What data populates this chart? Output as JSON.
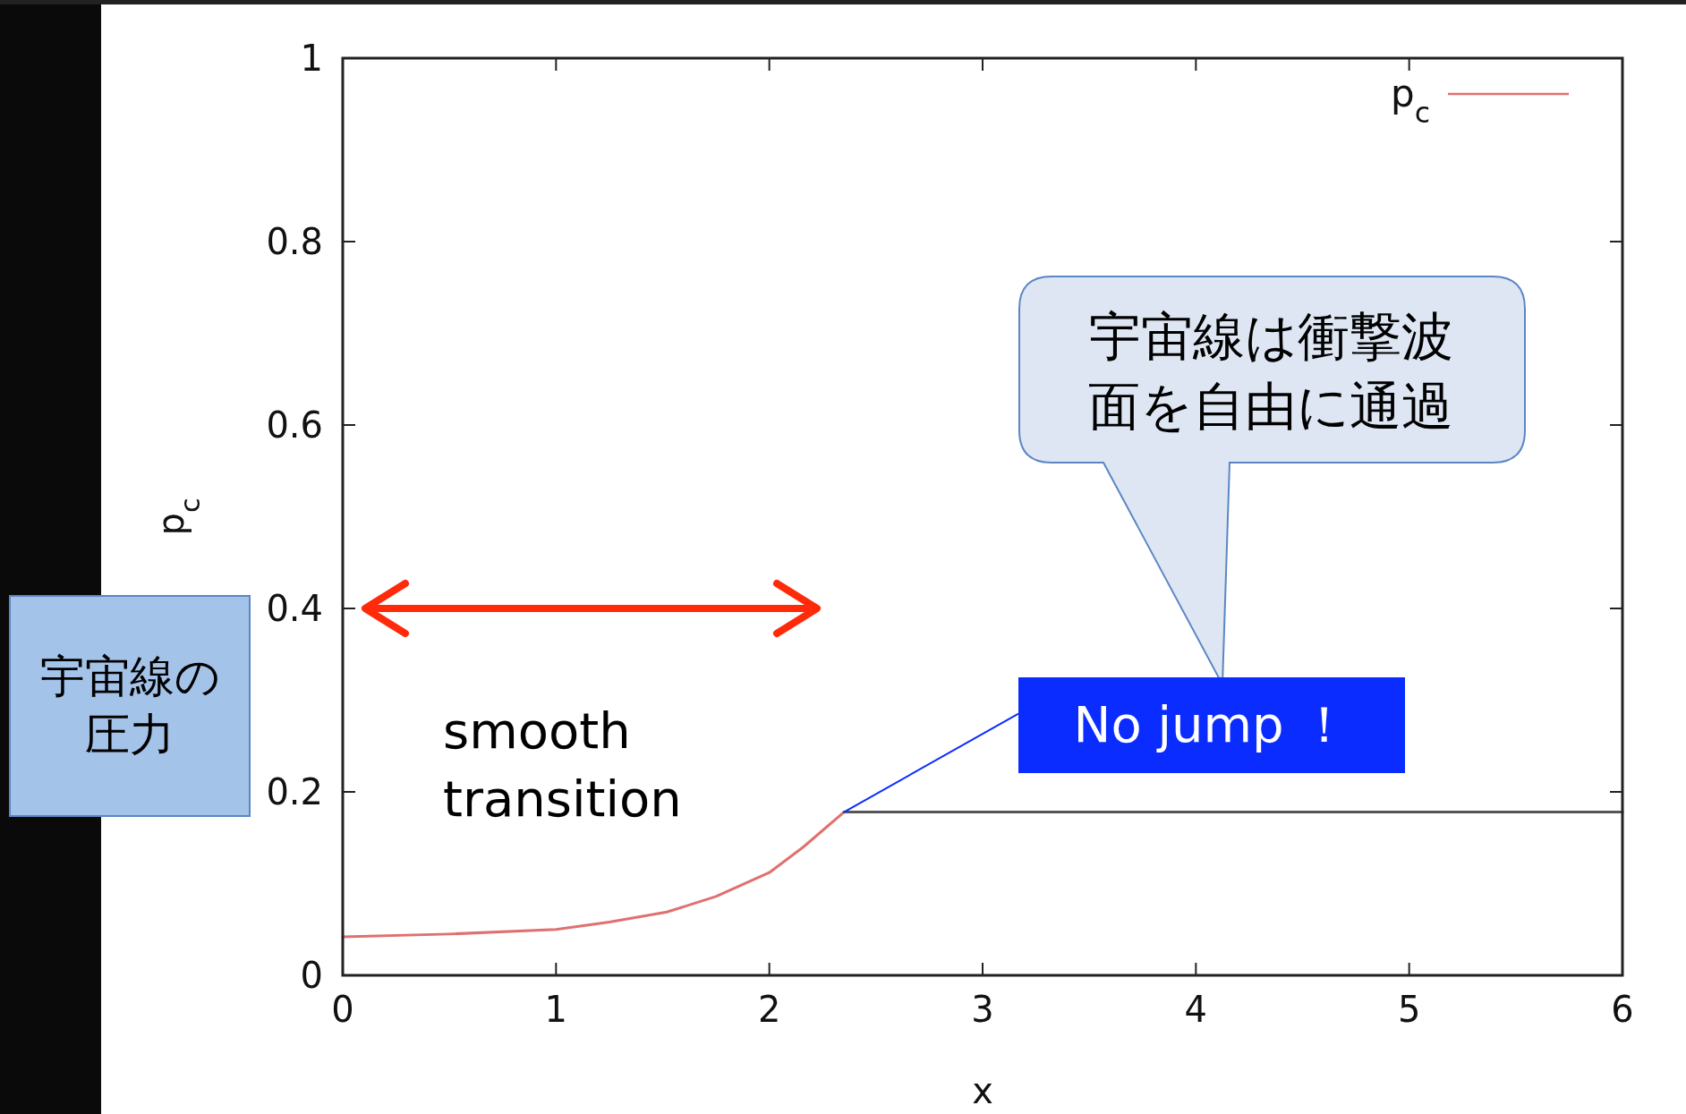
{
  "chart_data": {
    "type": "line",
    "xlabel": "x",
    "ylabel": "p$_{c}$",
    "xlim": [
      0,
      6
    ],
    "ylim": [
      0,
      1
    ],
    "xticks": [
      0,
      1,
      2,
      3,
      4,
      5,
      6
    ],
    "yticks": [
      0,
      0.2,
      0.4,
      0.6,
      0.8,
      1
    ],
    "legend": "top right",
    "series": [
      {
        "name": "p$_{c}$",
        "color": "#e07070",
        "x": [
          0,
          0.5,
          1,
          1.25,
          1.52,
          1.75,
          2,
          2.16,
          2.35
        ],
        "values": [
          0.042,
          0.045,
          0.05,
          0.058,
          0.069,
          0.086,
          0.112,
          0.14,
          0.178
        ]
      },
      {
        "color": "#555555",
        "x": [
          2.35,
          6
        ],
        "values": [
          0.178,
          0.178
        ]
      }
    ],
    "annotations": [
      "宇宙線は衝撃波面を自由に通過",
      {
        "text": "No jump ！",
        "x": 2.35,
        "y": 0.178
      },
      "smooth transition",
      "宇宙線の圧力"
    ]
  }
}
